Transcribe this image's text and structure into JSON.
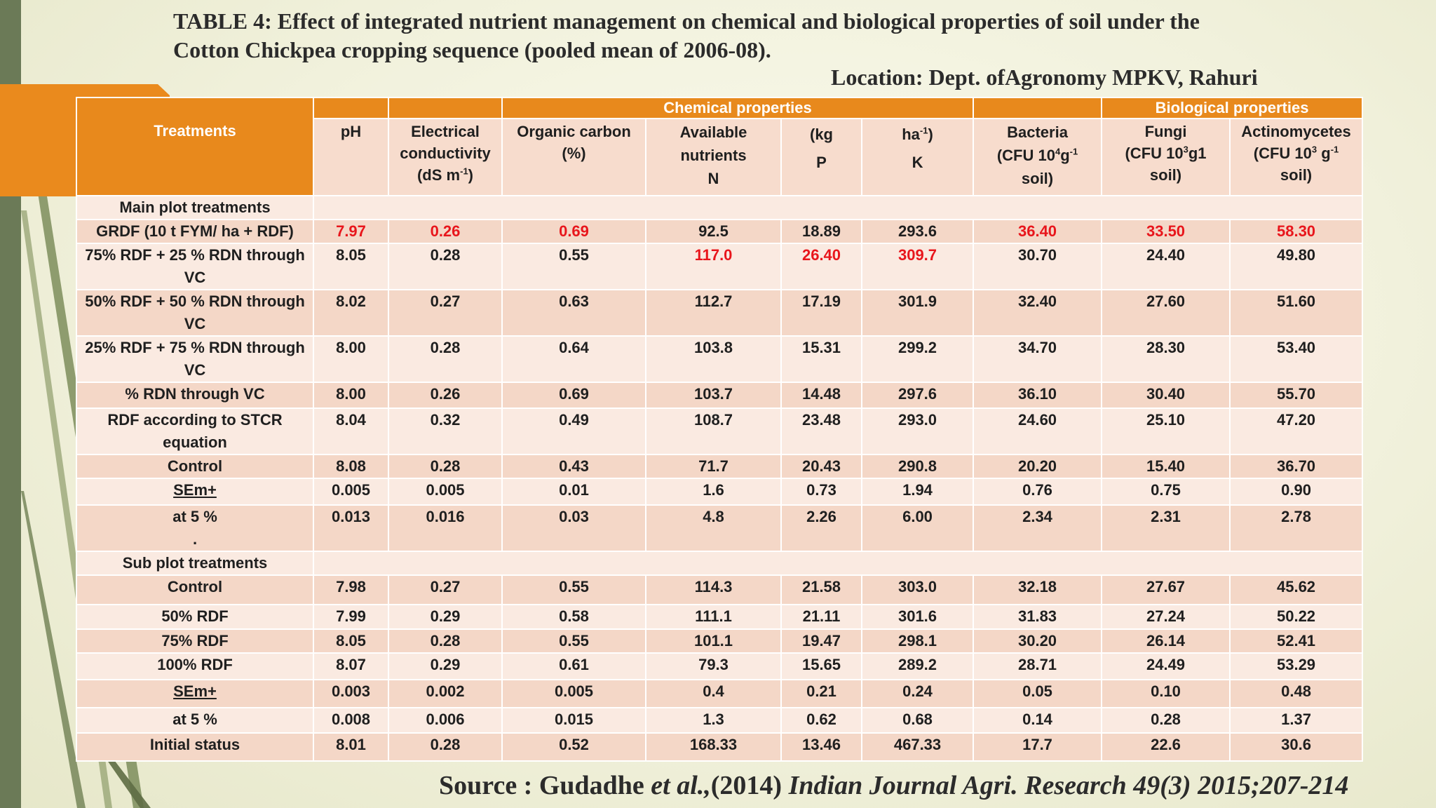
{
  "title": {
    "line1": "TABLE 4: Effect of integrated nutrient management on chemical and biological properties of soil under the",
    "line2": "Cotton Chickpea cropping sequence (pooled mean of 2006-08).",
    "location": "Location: Dept. ofAgronomy MPKV, Rahuri"
  },
  "source": {
    "prefix": "Source : Gudadhe ",
    "etal": "et al.,",
    "year": "(2014) ",
    "journal": "Indian Journal Agri. Research 49(3) 2015;207-214"
  },
  "header": {
    "treatments": "Treatments",
    "chemical": "Chemical properties",
    "biological": "Biological properties",
    "ph": "pH",
    "ec_l1": "Electrical",
    "ec_l2": "conductivity",
    "ec_l3": "(dS m",
    "ec_sup": "-1",
    "ec_end": ")",
    "oc_l1": "Organic carbon",
    "oc_l2": "(%)",
    "n_l1": "Available",
    "n_l2": "nutrients",
    "n_l3": "N",
    "p_l1": "(kg",
    "p_l2": "P",
    "k_l1": "ha",
    "k_sup": "-1",
    "k_end": ")",
    "k_l2": "K",
    "bac_l1": "Bacteria",
    "bac_l2a": "(CFU 10",
    "bac_sup1": "4",
    "bac_l2b": "g",
    "bac_sup2": "-1",
    "bac_l3": "soil)",
    "fun_l1": "Fungi",
    "fun_l2a": "(CFU 10",
    "fun_sup": "3",
    "fun_l2b": "g1",
    "fun_l3": "soil)",
    "act_l1": "Actinomycetes",
    "act_l2a": "(CFU 10",
    "act_sup1": "3",
    "act_l2b": " g",
    "act_sup2": "-1",
    "act_l3": "soil)"
  },
  "main_label": "Main plot treatments",
  "sub_label": "Sub plot treatments",
  "main_rows": [
    {
      "t": "GRDF (10 t FYM/ ha + RDF)",
      "v": [
        "7.97",
        "0.26",
        "0.69",
        "92.5",
        "18.89",
        "293.6",
        "36.40",
        "33.50",
        "58.30"
      ],
      "red": [
        0,
        1,
        2,
        6,
        7,
        8
      ],
      "h": 32
    },
    {
      "t": "75% RDF + 25 % RDN through VC",
      "v": [
        "8.05",
        "0.28",
        "0.55",
        "117.0",
        "26.40",
        "309.7",
        "30.70",
        "24.40",
        "49.80"
      ],
      "red": [
        3,
        4,
        5
      ],
      "h": 66
    },
    {
      "t": "50% RDF + 50 % RDN through VC",
      "v": [
        "8.02",
        "0.27",
        "0.63",
        "112.7",
        "17.19",
        "301.9",
        "32.40",
        "27.60",
        "51.60"
      ],
      "red": [],
      "h": 65
    },
    {
      "t": "25% RDF + 75 % RDN through VC",
      "v": [
        "8.00",
        "0.28",
        "0.64",
        "103.8",
        "15.31",
        "299.2",
        "34.70",
        "28.30",
        "53.40"
      ],
      "red": [],
      "h": 66
    },
    {
      "t": "% RDN through VC",
      "v": [
        "8.00",
        "0.26",
        "0.69",
        "103.7",
        "14.48",
        "297.6",
        "36.10",
        "30.40",
        "55.70"
      ],
      "red": [],
      "h": 37
    },
    {
      "t": "RDF according to STCR equation",
      "v": [
        "8.04",
        "0.32",
        "0.49",
        "108.7",
        "23.48",
        "293.0",
        "24.60",
        "25.10",
        "47.20"
      ],
      "red": [],
      "h": 66
    },
    {
      "t": "Control",
      "v": [
        "8.08",
        "0.28",
        "0.43",
        "71.7",
        "20.43",
        "290.8",
        "20.20",
        "15.40",
        "36.70"
      ],
      "red": [],
      "h": 32
    },
    {
      "t": "SEm+",
      "v": [
        "0.005",
        "0.005",
        "0.01",
        "1.6",
        "0.73",
        "1.94",
        "0.76",
        "0.75",
        "0.90"
      ],
      "red": [],
      "h": 38,
      "u": true
    },
    {
      "t": "at 5 %",
      "t2": ".",
      "v": [
        "0.013",
        "0.016",
        "0.03",
        "4.8",
        "2.26",
        "6.00",
        "2.34",
        "2.31",
        "2.78"
      ],
      "red": [],
      "h": 66
    }
  ],
  "sub_rows": [
    {
      "t": "Control",
      "v": [
        "7.98",
        "0.27",
        "0.55",
        "114.3",
        "21.58",
        "303.0",
        "32.18",
        "27.67",
        "45.62"
      ],
      "h": 42
    },
    {
      "t": "50% RDF",
      "v": [
        "7.99",
        "0.29",
        "0.58",
        "111.1",
        "21.11",
        "301.6",
        "31.83",
        "27.24",
        "50.22"
      ],
      "h": 35
    },
    {
      "t": "75% RDF",
      "v": [
        "8.05",
        "0.28",
        "0.55",
        "101.1",
        "19.47",
        "298.1",
        "30.20",
        "26.14",
        "52.41"
      ],
      "h": 30
    },
    {
      "t": "100% RDF",
      "v": [
        "8.07",
        "0.29",
        "0.61",
        "79.3",
        "15.65",
        "289.2",
        "28.71",
        "24.49",
        "53.29"
      ],
      "h": 38
    },
    {
      "t": "SEm+",
      "v": [
        "0.003",
        "0.002",
        "0.005",
        "0.4",
        "0.21",
        "0.24",
        "0.05",
        "0.10",
        "0.48"
      ],
      "h": 40,
      "u": true
    },
    {
      "t": "at 5 %",
      "v": [
        "0.008",
        "0.006",
        "0.015",
        "1.3",
        "0.62",
        "0.68",
        "0.14",
        "0.28",
        "1.37"
      ],
      "h": 36
    },
    {
      "t": "Initial status",
      "v": [
        "8.01",
        "0.28",
        "0.52",
        "168.33",
        "13.46",
        "467.33",
        "17.7",
        "22.6",
        "30.6"
      ],
      "h": 40
    }
  ]
}
